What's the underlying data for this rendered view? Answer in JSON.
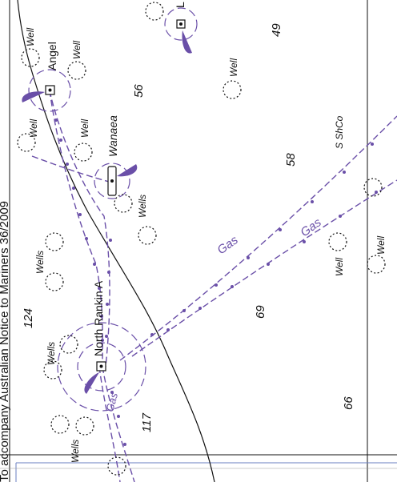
{
  "map": {
    "title_fragment": "To accompany Australian Notice to Mariners 36/2009",
    "block_numbers": [
      "124",
      "56",
      "58",
      "69",
      "117",
      "66",
      "49"
    ],
    "platforms": [
      "Angel",
      "Wanaea",
      "North Rankin A",
      "L"
    ],
    "pipeline_labels": [
      "Gas",
      "Gas",
      "Gas"
    ],
    "operator_label": "S ShCo",
    "well_label": "Well",
    "wells_label": "Wells",
    "colors": {
      "pipeline": "#6a4fa8",
      "linework": "#111111",
      "border_blue": "#6a7fc0"
    }
  }
}
